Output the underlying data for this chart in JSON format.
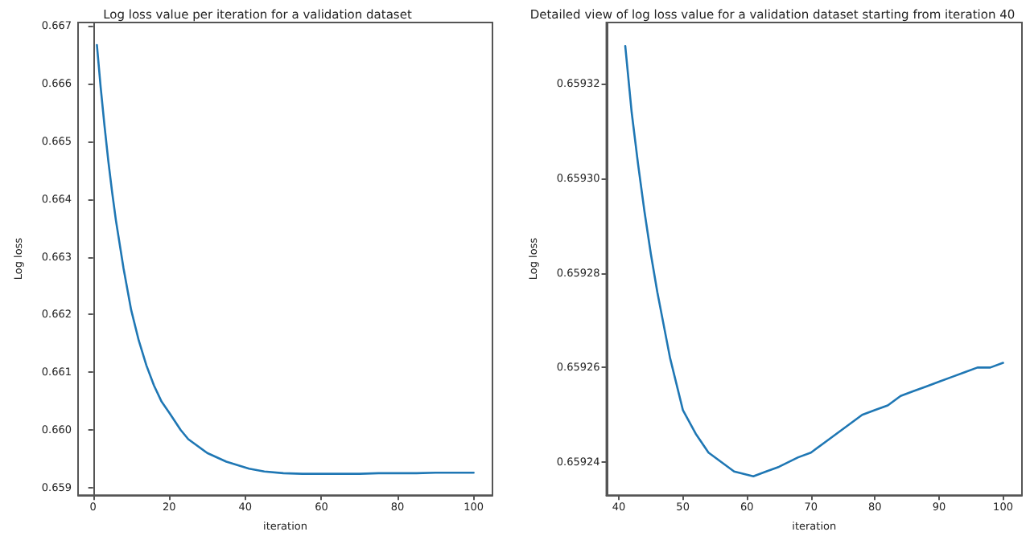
{
  "chart_data": [
    {
      "type": "line",
      "title": "Log loss value per iteration for a validation dataset",
      "xlabel": "iteration",
      "ylabel": "Log loss",
      "x": [
        1,
        2,
        3,
        4,
        5,
        6,
        8,
        10,
        12,
        14,
        16,
        18,
        20,
        23,
        25,
        30,
        35,
        41,
        45,
        50,
        55,
        61,
        65,
        70,
        75,
        80,
        85,
        90,
        95,
        100
      ],
      "series": [
        {
          "color": "#1f77b4",
          "values": [
            0.66667,
            0.66593,
            0.66527,
            0.66466,
            0.66412,
            0.66363,
            0.6628,
            0.66208,
            0.66155,
            0.66112,
            0.66077,
            0.66049,
            0.6603,
            0.66,
            0.65984,
            0.6596,
            0.65945,
            0.65933,
            0.65928,
            0.65925,
            0.65924,
            0.65924,
            0.65924,
            0.65924,
            0.65925,
            0.65925,
            0.65925,
            0.65926,
            0.65926,
            0.65926
          ]
        }
      ],
      "xlim": [
        -3.95,
        104.95
      ],
      "ylim": [
        0.65887,
        0.66706
      ],
      "xticks": [
        0,
        20,
        40,
        60,
        80,
        100
      ],
      "yticks": [
        0.659,
        {
          "value": 0.66,
          "label": "0.660"
        },
        0.661,
        0.662,
        0.663,
        0.664,
        0.665,
        0.666,
        0.667
      ]
    },
    {
      "type": "line",
      "title": "Detailed view of log loss value for a validation dataset starting from iteration 40",
      "xlabel": "iteration",
      "ylabel": "Log loss",
      "x": [
        41,
        42,
        43,
        44,
        45,
        46,
        48,
        50,
        52,
        54,
        56,
        58,
        61,
        63,
        65,
        68,
        70,
        72,
        74,
        76,
        78,
        80,
        82,
        84,
        86,
        88,
        90,
        92,
        94,
        96,
        98,
        100
      ],
      "series": [
        {
          "color": "#1f77b4",
          "values": [
            0.659328,
            0.659314,
            0.659303,
            0.659293,
            0.659284,
            0.659276,
            0.659262,
            0.659251,
            0.659246,
            0.659242,
            0.65924,
            0.659238,
            0.659237,
            0.659238,
            0.659239,
            0.659241,
            0.659242,
            0.659244,
            0.659246,
            0.659248,
            0.65925,
            0.659251,
            0.659252,
            0.659254,
            0.659255,
            0.659256,
            0.659257,
            0.659258,
            0.659259,
            0.65926,
            0.65926,
            0.659261
          ]
        }
      ],
      "xlim": [
        38.05,
        102.95
      ],
      "ylim": [
        0.659233,
        0.659333
      ],
      "xticks": [
        40,
        50,
        60,
        70,
        80,
        90,
        100
      ],
      "yticks": [
        0.65924,
        0.65926,
        0.65928,
        {
          "value": 0.6593,
          "label": "0.65930"
        },
        0.65932
      ]
    }
  ]
}
